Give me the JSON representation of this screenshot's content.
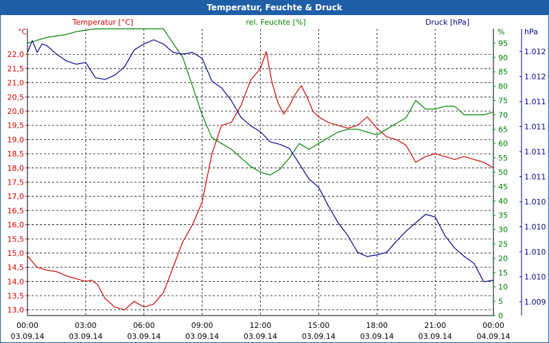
{
  "window": {
    "title": "Temperatur, Feuchte & Druck"
  },
  "legend": {
    "temperature": "Temperatur [°C]",
    "humidity": "rel. Feuchte [%]",
    "pressure": "Druck [hPa]"
  },
  "colors": {
    "temperature": "#cc0000",
    "humidity": "#008000",
    "pressure": "#00008b",
    "titlebar": "#1f5fa8",
    "grid": "#000000"
  },
  "chart_data": {
    "type": "line",
    "title": "Temperatur, Feuchte & Druck",
    "grid": true,
    "x_ticks": [
      {
        "time": "00:00",
        "date": "03.09.14"
      },
      {
        "time": "03:00",
        "date": "03.09.14"
      },
      {
        "time": "06:00",
        "date": "03.09.14"
      },
      {
        "time": "09:00",
        "date": "03.09.14"
      },
      {
        "time": "12:00",
        "date": "03.09.14"
      },
      {
        "time": "15:00",
        "date": "03.09.14"
      },
      {
        "time": "18:00",
        "date": "03.09.14"
      },
      {
        "time": "21:00",
        "date": "03.09.14"
      },
      {
        "time": "00:00",
        "date": "04.09.14"
      }
    ],
    "x_range_hours": [
      0,
      24
    ],
    "axes": {
      "left": {
        "unit": "°C",
        "ticks": [
          "22,0",
          "21,5",
          "21,0",
          "20,5",
          "20,0",
          "19,5",
          "19,0",
          "18,5",
          "18,0",
          "17,5",
          "17,0",
          "16,5",
          "16,0",
          "15,5",
          "15,0",
          "14,5",
          "14,0",
          "13,5",
          "13,0"
        ],
        "range": [
          12.8,
          22.9
        ]
      },
      "middle": {
        "unit": "%",
        "ticks": [
          "95",
          "90",
          "85",
          "80",
          "75",
          "70",
          "65",
          "60",
          "55",
          "50",
          "45",
          "40",
          "35",
          "30",
          "25",
          "20",
          "15",
          "10",
          "5",
          "0"
        ],
        "range": [
          0,
          100
        ]
      },
      "right": {
        "unit": "hPa",
        "ticks": [
          "1.012",
          "1.012",
          "1.011",
          "1.011",
          "1.011",
          "1.011",
          "1.010",
          "1.010",
          "1.010",
          "1.010",
          "1.009"
        ],
        "range": [
          1008.6,
          1012.0
        ]
      }
    },
    "series": [
      {
        "name": "Temperatur [°C]",
        "axis": "left",
        "x": [
          0,
          0.5,
          1,
          1.5,
          2,
          2.5,
          3,
          3.3,
          3.6,
          4,
          4.5,
          5,
          5.5,
          6,
          6.5,
          7,
          7.5,
          8,
          8.5,
          9,
          9.5,
          10,
          10.5,
          11,
          11.5,
          12,
          12.3,
          12.6,
          12.9,
          13.2,
          13.5,
          13.8,
          14.1,
          14.4,
          14.7,
          15,
          15.5,
          16,
          16.5,
          17,
          17.5,
          18,
          18.5,
          19,
          19.5,
          20,
          20.5,
          21,
          21.5,
          22,
          22.5,
          23,
          23.5,
          24
        ],
        "values": [
          14.9,
          14.5,
          14.4,
          14.35,
          14.2,
          14.1,
          14.0,
          14.05,
          13.9,
          13.4,
          13.1,
          13.0,
          13.3,
          13.1,
          13.2,
          13.6,
          14.5,
          15.4,
          16.0,
          16.8,
          18.5,
          19.5,
          19.6,
          20.2,
          21.1,
          21.5,
          22.1,
          21.0,
          20.3,
          19.9,
          20.2,
          20.6,
          20.9,
          20.5,
          20.0,
          19.8,
          19.6,
          19.5,
          19.4,
          19.5,
          19.8,
          19.4,
          19.1,
          19.0,
          18.8,
          18.2,
          18.4,
          18.5,
          18.4,
          18.3,
          18.4,
          18.3,
          18.2,
          18.0
        ]
      },
      {
        "name": "rel. Feuchte [%]",
        "axis": "middle",
        "x": [
          0,
          0.5,
          1,
          1.5,
          2,
          2.5,
          3,
          3.5,
          4,
          4.5,
          5,
          5.5,
          6,
          6.5,
          7,
          7.5,
          8,
          8.5,
          9,
          9.5,
          10,
          10.5,
          11,
          11.5,
          12,
          12.5,
          13,
          13.5,
          14,
          14.5,
          15,
          15.5,
          16,
          16.5,
          17,
          17.5,
          18,
          18.5,
          19,
          19.5,
          20,
          20.5,
          21,
          21.5,
          22,
          22.5,
          23,
          23.5,
          24
        ],
        "values": [
          95,
          96,
          97,
          97.5,
          98,
          99,
          99.5,
          100,
          100,
          100,
          100,
          100,
          100,
          100,
          100,
          95,
          90,
          80,
          70,
          62,
          60,
          58,
          55,
          52,
          50,
          49,
          51,
          55,
          60,
          58,
          60,
          62,
          64,
          65,
          65,
          64,
          63,
          65,
          67,
          69,
          75,
          72,
          72,
          73,
          73,
          70,
          70,
          70,
          71
        ]
      },
      {
        "name": "Druck [hPa]",
        "axis": "right",
        "x": [
          0,
          0.25,
          0.5,
          0.75,
          1,
          1.5,
          2,
          2.5,
          3,
          3.5,
          4,
          4.5,
          5,
          5.5,
          6,
          6.5,
          7,
          7.5,
          8,
          8.5,
          9,
          9.5,
          10,
          10.5,
          11,
          11.5,
          12,
          12.5,
          13,
          13.5,
          14,
          14.5,
          15,
          15.5,
          16,
          16.5,
          17,
          17.5,
          18,
          18.5,
          19,
          19.5,
          20,
          20.5,
          21,
          21.5,
          22,
          22.5,
          23,
          23.5,
          24
        ],
        "values": [
          1011.72,
          1011.86,
          1011.72,
          1011.82,
          1011.8,
          1011.7,
          1011.62,
          1011.58,
          1011.6,
          1011.42,
          1011.4,
          1011.45,
          1011.55,
          1011.75,
          1011.82,
          1011.87,
          1011.82,
          1011.72,
          1011.7,
          1011.72,
          1011.65,
          1011.38,
          1011.3,
          1011.15,
          1010.95,
          1010.85,
          1010.78,
          1010.66,
          1010.63,
          1010.58,
          1010.4,
          1010.22,
          1010.12,
          1009.9,
          1009.7,
          1009.55,
          1009.35,
          1009.3,
          1009.32,
          1009.35,
          1009.48,
          1009.6,
          1009.7,
          1009.8,
          1009.77,
          1009.55,
          1009.4,
          1009.3,
          1009.22,
          1009.0,
          1009.02
        ]
      }
    ]
  }
}
